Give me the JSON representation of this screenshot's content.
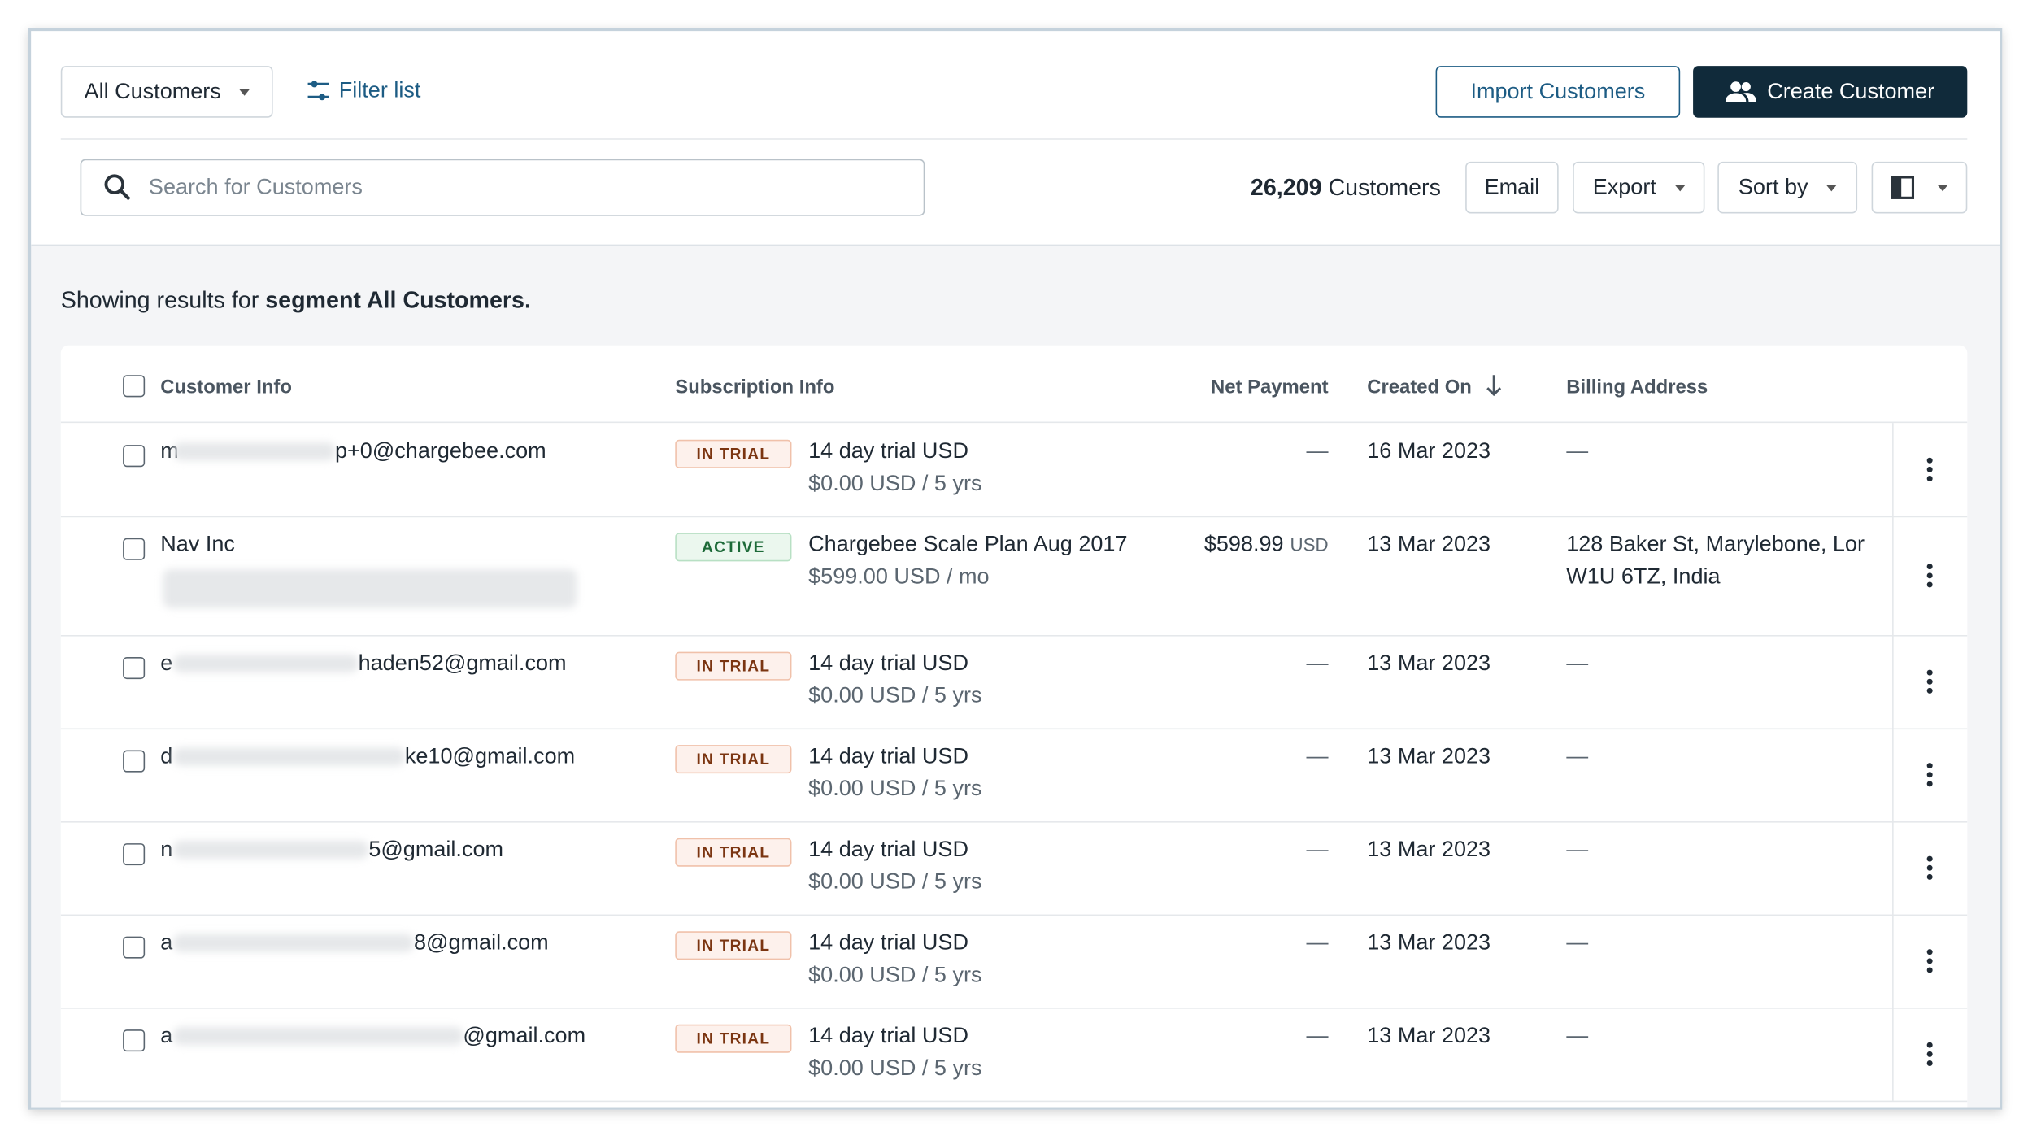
{
  "toolbar": {
    "segment_dropdown": "All Customers",
    "filter": "Filter list",
    "import": "Import Customers",
    "create": "Create Customer"
  },
  "search_placeholder": "Search for Customers",
  "count": {
    "number": "26,209",
    "label": "Customers"
  },
  "buttons": [
    "Email",
    "Export",
    "Sort by"
  ],
  "summary": {
    "prefix": "Showing results for",
    "segment": "segment All Customers."
  },
  "table": {
    "headers": [
      "Customer Info",
      "Subscription Info",
      "Net Payment",
      "Created On",
      "Billing Address"
    ],
    "rows": [
      {
        "customer": {
          "start": "m",
          "end": "p+0@chargebee.com"
        },
        "status": "IN TRIAL",
        "plan": "14 day trial USD",
        "price": "$0.00 USD / 5 yrs",
        "net_payment": "—",
        "created": "16 Mar 2023",
        "billing": [
          "—"
        ]
      },
      {
        "customer": {
          "name": "Nav Inc"
        },
        "status": "ACTIVE",
        "plan": "Chargebee Scale Plan Aug 2017",
        "price": "$599.00 USD / mo",
        "net_payment": {
          "amount": "$598.99",
          "currency": "USD"
        },
        "created": "13 Mar 2023",
        "billing": [
          "128 Baker St, Marylebone, Lor",
          "W1U 6TZ, India"
        ]
      },
      {
        "customer": {
          "start": "e",
          "end": "haden52@gmail.com"
        },
        "status": "IN TRIAL",
        "plan": "14 day trial USD",
        "price": "$0.00 USD / 5 yrs",
        "net_payment": "—",
        "created": "13 Mar 2023",
        "billing": [
          "—"
        ]
      },
      {
        "customer": {
          "start": "d",
          "end": "ke10@gmail.com"
        },
        "status": "IN TRIAL",
        "plan": "14 day trial USD",
        "price": "$0.00 USD / 5 yrs",
        "net_payment": "—",
        "created": "13 Mar 2023",
        "billing": [
          "—"
        ]
      },
      {
        "customer": {
          "start": "n",
          "end": "5@gmail.com"
        },
        "status": "IN TRIAL",
        "plan": "14 day trial USD",
        "price": "$0.00 USD / 5 yrs",
        "net_payment": "—",
        "created": "13 Mar 2023",
        "billing": [
          "—"
        ]
      },
      {
        "customer": {
          "start": "a",
          "end": "8@gmail.com"
        },
        "status": "IN TRIAL",
        "plan": "14 day trial USD",
        "price": "$0.00 USD / 5 yrs",
        "net_payment": "—",
        "created": "13 Mar 2023",
        "billing": [
          "—"
        ]
      },
      {
        "customer": {
          "start": "a",
          "end": "@gmail.com"
        },
        "status": "IN TRIAL",
        "plan": "14 day trial USD",
        "price": "$0.00 USD / 5 yrs",
        "net_payment": "—",
        "created": "13 Mar 2023",
        "billing": [
          "—"
        ]
      }
    ]
  }
}
